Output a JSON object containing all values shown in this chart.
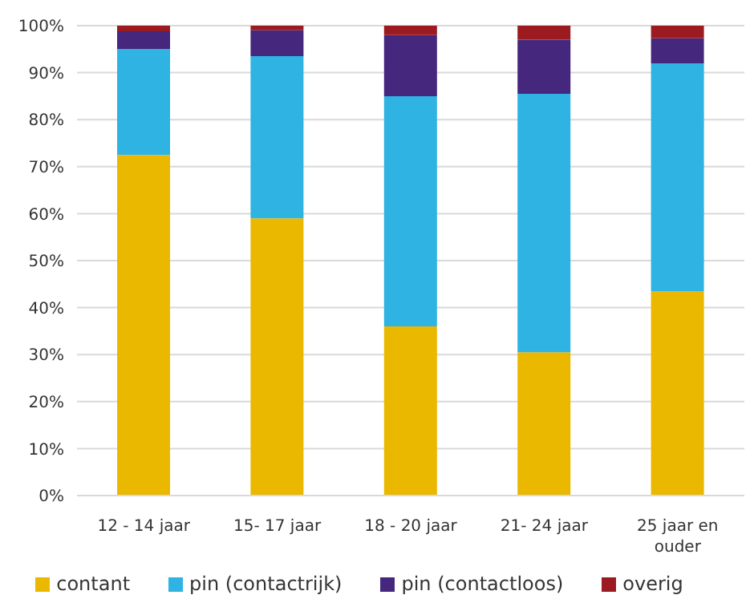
{
  "chart_data": {
    "type": "bar",
    "stacked": true,
    "categories": [
      "12 - 14 jaar",
      "15- 17 jaar",
      "18 - 20 jaar",
      "21- 24 jaar",
      "25 jaar en ouder"
    ],
    "series": [
      {
        "name": "contant",
        "color": "#ebb800",
        "values": [
          72.5,
          59,
          36,
          30.5,
          43.5
        ]
      },
      {
        "name": "pin (contactrijk)",
        "color": "#2eb3e3",
        "values": [
          22.5,
          34.5,
          49,
          55,
          48.5
        ]
      },
      {
        "name": "pin (contactloos)",
        "color": "#45277e",
        "values": [
          3.8,
          5.5,
          13,
          11.5,
          5.3
        ]
      },
      {
        "name": "overig",
        "color": "#9b1b20",
        "values": [
          1.2,
          1,
          2,
          3,
          2.7
        ]
      }
    ],
    "ylim": [
      0,
      100
    ],
    "yticks": [
      {
        "value": 0,
        "label": "0%"
      },
      {
        "value": 10,
        "label": "10%"
      },
      {
        "value": 20,
        "label": "20%"
      },
      {
        "value": 30,
        "label": "30%"
      },
      {
        "value": 40,
        "label": "40%"
      },
      {
        "value": 50,
        "label": "50%"
      },
      {
        "value": 60,
        "label": "60%"
      },
      {
        "value": 70,
        "label": "70%"
      },
      {
        "value": 80,
        "label": "80%"
      },
      {
        "value": 90,
        "label": "90%"
      },
      {
        "value": 100,
        "label": "100%"
      }
    ],
    "grid": "y",
    "legend": "bottom"
  }
}
